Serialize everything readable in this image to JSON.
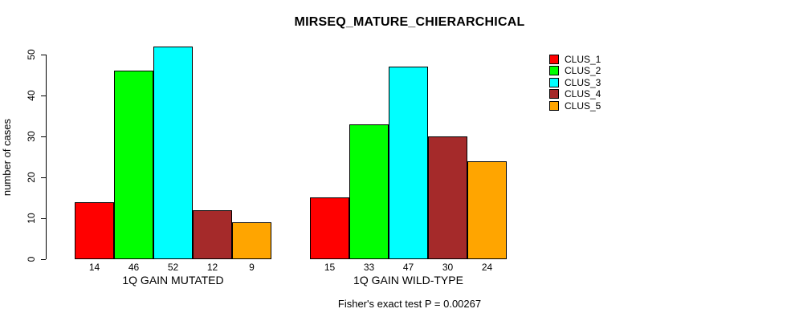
{
  "chart_data": {
    "type": "bar",
    "title": "MIRSEQ_MATURE_CHIERARCHICAL",
    "ylabel": "number of cases",
    "ylim": [
      0,
      50
    ],
    "yticks": [
      0,
      10,
      20,
      30,
      40,
      50
    ],
    "grid": false,
    "legend_position": "right",
    "series": [
      "CLUS_1",
      "CLUS_2",
      "CLUS_3",
      "CLUS_4",
      "CLUS_5"
    ],
    "colors": [
      "#FF0000",
      "#00FF00",
      "#00FFFF",
      "#A52A2A",
      "#FFA500"
    ],
    "groups": [
      {
        "label": "1Q GAIN MUTATED",
        "values": [
          14,
          46,
          52,
          12,
          9
        ]
      },
      {
        "label": "1Q GAIN WILD-TYPE",
        "values": [
          15,
          33,
          47,
          30,
          24
        ]
      }
    ],
    "bar_value_labels_shown": true,
    "annotation": "Fisher's exact test P = 0.00267"
  },
  "legend": {
    "items": [
      {
        "label": "CLUS_1",
        "color": "#FF0000"
      },
      {
        "label": "CLUS_2",
        "color": "#00FF00"
      },
      {
        "label": "CLUS_3",
        "color": "#00FFFF"
      },
      {
        "label": "CLUS_4",
        "color": "#A52A2A"
      },
      {
        "label": "CLUS_5",
        "color": "#FFA500"
      }
    ]
  }
}
